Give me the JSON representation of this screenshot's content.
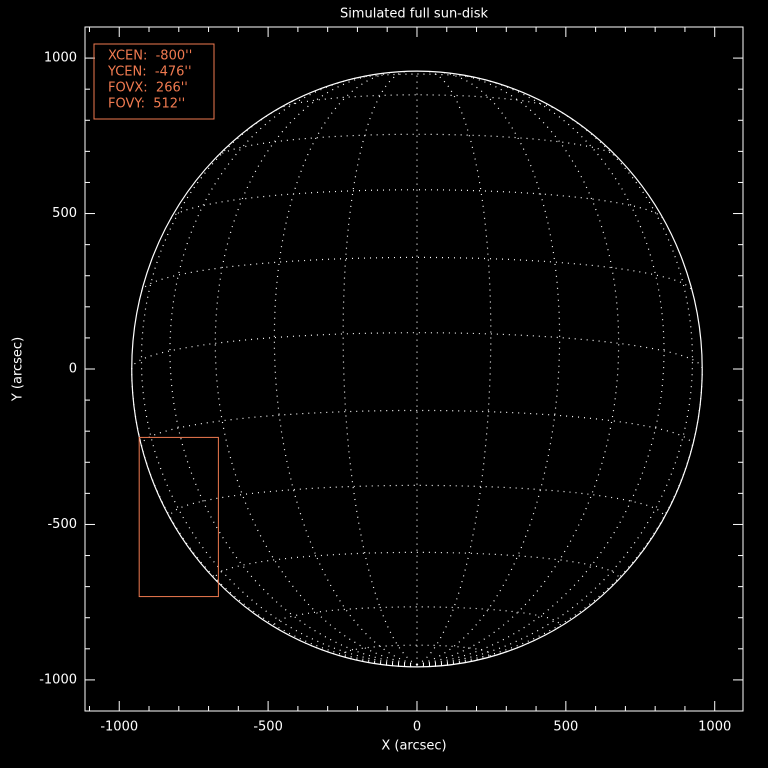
{
  "chart_data": {
    "type": "sun-disk",
    "title": "Simulated full sun-disk",
    "x_label": "X (arcsec)",
    "y_label": "Y (arcsec)",
    "xlim": [
      -1115,
      1095
    ],
    "ylim": [
      -1100,
      1100
    ],
    "xticks": [
      -1000,
      -500,
      0,
      500,
      1000
    ],
    "yticks": [
      -1000,
      -500,
      0,
      500,
      1000
    ],
    "minor_ticks_per_major": 5,
    "sun": {
      "radius": 958,
      "b0_deg": -7,
      "grid_spacing_deg": 15,
      "color": "#ffffff"
    },
    "fov_box": {
      "xcen": -800,
      "ycen": -476,
      "fovx": 266,
      "fovy": 512,
      "color": "#f07a50"
    },
    "annotations": [
      "XCEN:  -800''",
      "YCEN:  -476''",
      "FOVX:  266''",
      "FOVY:  512''"
    ]
  }
}
